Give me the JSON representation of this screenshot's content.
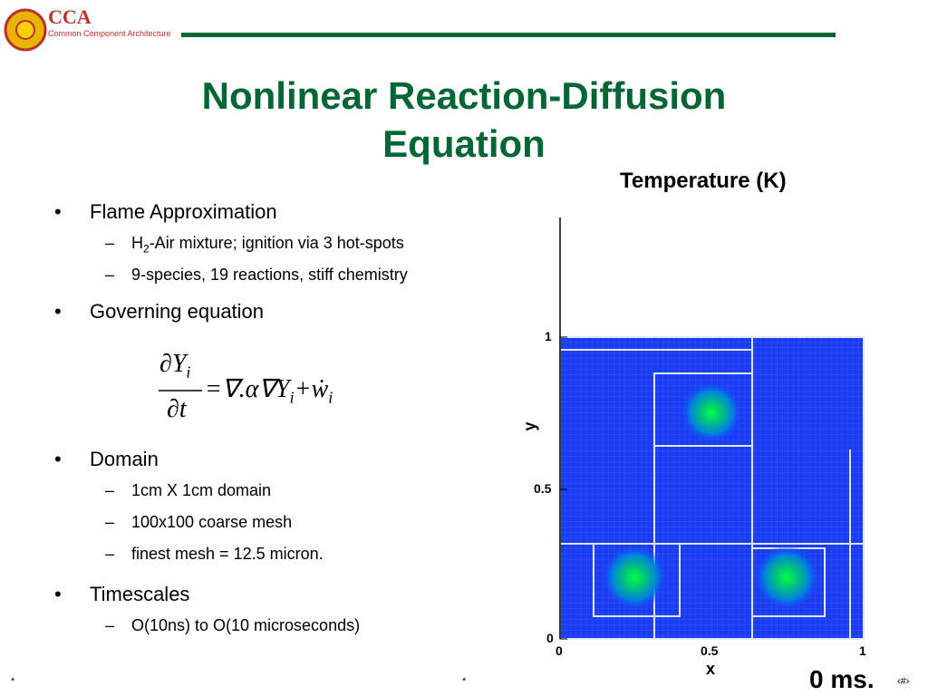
{
  "header": {
    "logo_text": "CCA",
    "logo_subtitle": "Common Component Architecture"
  },
  "title": {
    "line1": "Nonlinear Reaction-Diffusion",
    "line2": "Equation"
  },
  "bullets": [
    {
      "text": "Flame Approximation",
      "subs": [
        {
          "pre": "H",
          "sub": "2",
          "post": "-Air mixture; ignition via 3 hot-spots"
        },
        {
          "pre": "9-species, 19 reactions, stiff chemistry"
        }
      ]
    },
    {
      "text": "Governing equation",
      "subs": []
    },
    {
      "text": "Domain",
      "subs": [
        {
          "pre": "1cm X 1cm domain"
        },
        {
          "pre": "100x100 coarse mesh"
        },
        {
          "pre": "finest mesh = 12.5 micron."
        }
      ]
    },
    {
      "text": "Timescales",
      "subs": [
        {
          "pre": "O(10ns) to O(10 microseconds)"
        }
      ]
    }
  ],
  "equation": {
    "num": "∂Y",
    "num_sub": "i",
    "den": "∂t",
    "rhs": "=∇.α∇Y",
    "rhs_sub": "i",
    "plus": "+ẇ",
    "plus_sub": "i"
  },
  "figure": {
    "title": "Temperature (K)",
    "x_label": "x",
    "y_label": "y",
    "x_ticks": [
      "0",
      "0.5",
      "1"
    ],
    "y_ticks": [
      "0",
      "0.5",
      "1"
    ],
    "time": "0 ms."
  },
  "footer": {
    "left": "*",
    "center": "*",
    "right": "‹#›"
  }
}
